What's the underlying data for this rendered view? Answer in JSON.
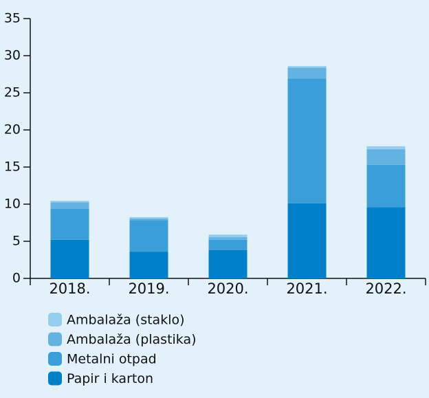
{
  "chart_data": {
    "type": "stacked-bar",
    "categories": [
      "2018.",
      "2019.",
      "2020.",
      "2021.",
      "2022."
    ],
    "series": [
      {
        "name": "Papir i karton",
        "color": "#0080c8",
        "values": [
          5.2,
          3.6,
          3.8,
          10.1,
          9.6
        ]
      },
      {
        "name": "Metalni otpad",
        "color": "#3a9ed8",
        "values": [
          4.15,
          4.25,
          1.4,
          16.8,
          5.7
        ]
      },
      {
        "name": "Ambalaža (plastika)",
        "color": "#62b3e2",
        "values": [
          0.9,
          0.2,
          0.35,
          1.5,
          2.1
        ]
      },
      {
        "name": "Ambalaža (staklo)",
        "color": "#94cdee",
        "values": [
          0.2,
          0.2,
          0.35,
          0.2,
          0.4
        ]
      }
    ],
    "ylim": [
      0,
      35
    ],
    "yticks": [
      0,
      5,
      10,
      15,
      20,
      25,
      30,
      35
    ]
  }
}
